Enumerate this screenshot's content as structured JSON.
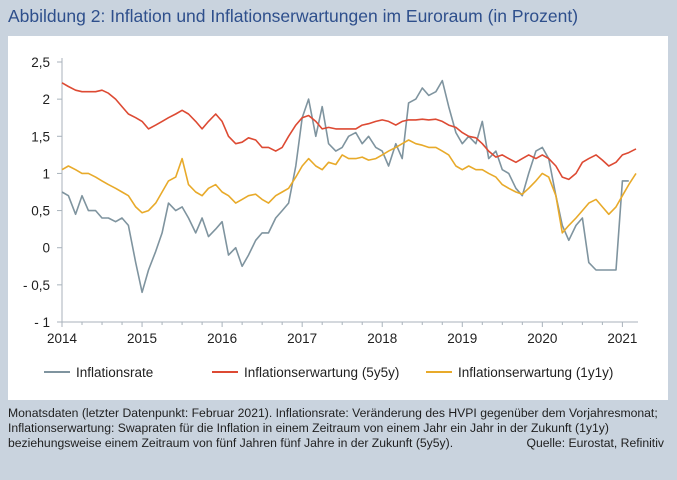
{
  "title": "Abbildung 2: Inflation und Inflationserwartungen im Euroraum (in Prozent)",
  "footnote": "Monatsdaten (letzter Datenpunkt: Februar 2021). Inflationsrate: Veränderung des HVPI gegenüber dem Vorjahresmonat; Inflationserwartung:  Swapraten für die Inflation in einem Zeitraum von einem Jahr ein Jahr in der Zukunft (1y1y) beziehungsweise einem Zeitraum von fünf Jahren fünf Jahre in der Zukunft (5y5y).",
  "source": "Quelle: Eurostat, Refinitiv",
  "colors": {
    "rate": "#7f949f",
    "exp5y5y": "#dd4a33",
    "exp1y1y": "#e8aa2a",
    "axis": "#a8b2bb"
  },
  "chart_data": {
    "type": "line",
    "x_range": [
      2014.0,
      2021.17
    ],
    "ylim": [
      -1,
      2.5
    ],
    "x_ticks": [
      2014,
      2015,
      2016,
      2017,
      2018,
      2019,
      2020,
      2021
    ],
    "x_tick_labels": [
      "2014",
      "2015",
      "2016",
      "2017",
      "2018",
      "2019",
      "2020",
      "2021"
    ],
    "y_ticks": [
      -1,
      -0.5,
      0,
      0.5,
      1,
      1.5,
      2,
      2.5
    ],
    "y_tick_labels": [
      "- 1",
      "- 0,5",
      "0",
      "0,5",
      "1",
      "1,5",
      "2",
      "2,5"
    ],
    "grid": false,
    "legend_position": "bottom",
    "series": [
      {
        "name": "Inflationsrate",
        "x": [
          2014.0,
          2014.08,
          2014.17,
          2014.25,
          2014.33,
          2014.42,
          2014.5,
          2014.58,
          2014.67,
          2014.75,
          2014.83,
          2014.92,
          2015.0,
          2015.08,
          2015.17,
          2015.25,
          2015.33,
          2015.42,
          2015.5,
          2015.58,
          2015.67,
          2015.75,
          2015.83,
          2015.92,
          2016.0,
          2016.08,
          2016.17,
          2016.25,
          2016.33,
          2016.42,
          2016.5,
          2016.58,
          2016.67,
          2016.75,
          2016.83,
          2016.92,
          2017.0,
          2017.08,
          2017.17,
          2017.25,
          2017.33,
          2017.42,
          2017.5,
          2017.58,
          2017.67,
          2017.75,
          2017.83,
          2017.92,
          2018.0,
          2018.08,
          2018.17,
          2018.25,
          2018.33,
          2018.42,
          2018.5,
          2018.58,
          2018.67,
          2018.75,
          2018.83,
          2018.92,
          2019.0,
          2019.08,
          2019.17,
          2019.25,
          2019.33,
          2019.42,
          2019.5,
          2019.58,
          2019.67,
          2019.75,
          2019.83,
          2019.92,
          2020.0,
          2020.08,
          2020.17,
          2020.25,
          2020.33,
          2020.42,
          2020.5,
          2020.58,
          2020.67,
          2020.75,
          2020.83,
          2020.92,
          2021.0,
          2021.08
        ],
        "y": [
          0.75,
          0.7,
          0.45,
          0.7,
          0.5,
          0.5,
          0.4,
          0.4,
          0.35,
          0.4,
          0.3,
          -0.2,
          -0.6,
          -0.3,
          -0.05,
          0.2,
          0.6,
          0.5,
          0.55,
          0.4,
          0.2,
          0.4,
          0.15,
          0.25,
          0.35,
          -0.1,
          0.0,
          -0.25,
          -0.1,
          0.1,
          0.2,
          0.2,
          0.4,
          0.5,
          0.6,
          1.1,
          1.75,
          2.0,
          1.5,
          1.9,
          1.4,
          1.3,
          1.35,
          1.5,
          1.55,
          1.4,
          1.5,
          1.35,
          1.3,
          1.1,
          1.4,
          1.2,
          1.95,
          2.0,
          2.15,
          2.05,
          2.1,
          2.25,
          1.9,
          1.55,
          1.4,
          1.5,
          1.4,
          1.7,
          1.2,
          1.3,
          1.05,
          1.0,
          0.8,
          0.7,
          1.0,
          1.3,
          1.35,
          1.2,
          0.7,
          0.3,
          0.1,
          0.3,
          0.4,
          -0.2,
          -0.3,
          -0.3,
          -0.3,
          -0.3,
          0.9,
          0.9
        ]
      },
      {
        "name": "Inflationserwartung (5y5y)",
        "x": [
          2014.0,
          2014.08,
          2014.17,
          2014.25,
          2014.33,
          2014.42,
          2014.5,
          2014.58,
          2014.67,
          2014.75,
          2014.83,
          2014.92,
          2015.0,
          2015.08,
          2015.17,
          2015.25,
          2015.33,
          2015.42,
          2015.5,
          2015.58,
          2015.67,
          2015.75,
          2015.83,
          2015.92,
          2016.0,
          2016.08,
          2016.17,
          2016.25,
          2016.33,
          2016.42,
          2016.5,
          2016.58,
          2016.67,
          2016.75,
          2016.83,
          2016.92,
          2017.0,
          2017.08,
          2017.17,
          2017.25,
          2017.33,
          2017.42,
          2017.5,
          2017.58,
          2017.67,
          2017.75,
          2017.83,
          2017.92,
          2018.0,
          2018.08,
          2018.17,
          2018.25,
          2018.33,
          2018.42,
          2018.5,
          2018.58,
          2018.67,
          2018.75,
          2018.83,
          2018.92,
          2019.0,
          2019.08,
          2019.17,
          2019.25,
          2019.33,
          2019.42,
          2019.5,
          2019.58,
          2019.67,
          2019.75,
          2019.83,
          2019.92,
          2020.0,
          2020.08,
          2020.17,
          2020.25,
          2020.33,
          2020.42,
          2020.5,
          2020.58,
          2020.67,
          2020.75,
          2020.83,
          2020.92,
          2021.0,
          2021.08,
          2021.17
        ],
        "y": [
          2.22,
          2.17,
          2.12,
          2.1,
          2.1,
          2.1,
          2.12,
          2.08,
          2.0,
          1.9,
          1.8,
          1.75,
          1.7,
          1.6,
          1.65,
          1.7,
          1.75,
          1.8,
          1.85,
          1.8,
          1.7,
          1.6,
          1.7,
          1.8,
          1.7,
          1.5,
          1.4,
          1.42,
          1.48,
          1.45,
          1.35,
          1.35,
          1.3,
          1.35,
          1.5,
          1.65,
          1.75,
          1.78,
          1.7,
          1.6,
          1.62,
          1.6,
          1.6,
          1.6,
          1.6,
          1.65,
          1.67,
          1.7,
          1.72,
          1.7,
          1.65,
          1.7,
          1.72,
          1.72,
          1.73,
          1.72,
          1.73,
          1.7,
          1.65,
          1.62,
          1.55,
          1.5,
          1.48,
          1.4,
          1.3,
          1.22,
          1.25,
          1.2,
          1.15,
          1.2,
          1.25,
          1.2,
          1.25,
          1.2,
          1.1,
          0.95,
          0.92,
          1.0,
          1.15,
          1.2,
          1.25,
          1.18,
          1.1,
          1.15,
          1.25,
          1.28,
          1.33
        ]
      },
      {
        "name": "Inflationserwartung (1y1y)",
        "x": [
          2014.0,
          2014.08,
          2014.17,
          2014.25,
          2014.33,
          2014.42,
          2014.5,
          2014.58,
          2014.67,
          2014.75,
          2014.83,
          2014.92,
          2015.0,
          2015.08,
          2015.17,
          2015.25,
          2015.33,
          2015.42,
          2015.5,
          2015.58,
          2015.67,
          2015.75,
          2015.83,
          2015.92,
          2016.0,
          2016.08,
          2016.17,
          2016.25,
          2016.33,
          2016.42,
          2016.5,
          2016.58,
          2016.67,
          2016.75,
          2016.83,
          2016.92,
          2017.0,
          2017.08,
          2017.17,
          2017.25,
          2017.33,
          2017.42,
          2017.5,
          2017.58,
          2017.67,
          2017.75,
          2017.83,
          2017.92,
          2018.0,
          2018.08,
          2018.17,
          2018.25,
          2018.33,
          2018.42,
          2018.5,
          2018.58,
          2018.67,
          2018.75,
          2018.83,
          2018.92,
          2019.0,
          2019.08,
          2019.17,
          2019.25,
          2019.33,
          2019.42,
          2019.5,
          2019.58,
          2019.67,
          2019.75,
          2019.83,
          2019.92,
          2020.0,
          2020.08,
          2020.17,
          2020.25,
          2020.33,
          2020.42,
          2020.5,
          2020.58,
          2020.67,
          2020.75,
          2020.83,
          2020.92,
          2021.0,
          2021.08,
          2021.17
        ],
        "y": [
          1.05,
          1.1,
          1.05,
          1.0,
          1.0,
          0.95,
          0.9,
          0.85,
          0.8,
          0.75,
          0.7,
          0.55,
          0.47,
          0.5,
          0.6,
          0.75,
          0.9,
          0.95,
          1.2,
          0.85,
          0.75,
          0.7,
          0.8,
          0.85,
          0.75,
          0.7,
          0.6,
          0.65,
          0.7,
          0.72,
          0.65,
          0.6,
          0.7,
          0.75,
          0.8,
          0.95,
          1.1,
          1.2,
          1.1,
          1.05,
          1.15,
          1.12,
          1.25,
          1.2,
          1.2,
          1.22,
          1.18,
          1.2,
          1.25,
          1.3,
          1.35,
          1.4,
          1.45,
          1.4,
          1.38,
          1.35,
          1.35,
          1.3,
          1.25,
          1.1,
          1.05,
          1.1,
          1.05,
          1.05,
          1.0,
          0.95,
          0.85,
          0.8,
          0.75,
          0.72,
          0.8,
          0.9,
          1.0,
          0.95,
          0.7,
          0.2,
          0.3,
          0.4,
          0.5,
          0.6,
          0.65,
          0.55,
          0.45,
          0.55,
          0.7,
          0.85,
          1.0
        ]
      }
    ]
  }
}
